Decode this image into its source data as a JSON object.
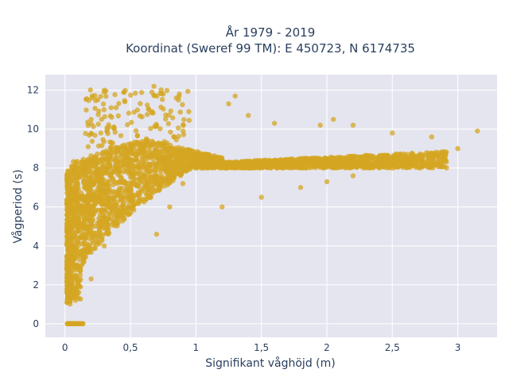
{
  "chart_data": {
    "type": "scatter",
    "title_line1": "År 1979 - 2019",
    "title_line2": "Koordinat (Sweref 99 TM): E 450723, N 6174735",
    "xlabel": "Signifikant våghöjd (m)",
    "ylabel": "Vågperiod (s)",
    "xlim": [
      -0.15,
      3.3
    ],
    "ylim": [
      -0.7,
      12.8
    ],
    "x_ticks": [
      0,
      0.5,
      1,
      1.5,
      2,
      2.5,
      3
    ],
    "x_tick_labels": [
      "0",
      "0,5",
      "1",
      "1,5",
      "2",
      "2,5",
      "3"
    ],
    "y_ticks": [
      0,
      2,
      4,
      6,
      8,
      10,
      12
    ],
    "y_tick_labels": [
      "0",
      "2",
      "4",
      "6",
      "8",
      "10",
      "12"
    ],
    "grid": true,
    "marker_color": "#D4A521",
    "plot_background": "#E5E5EF",
    "points_summary": {
      "core_band": "dense cloud from Hs≈0.02–2.9 m with Tp rising from ≈1–2 s at low Hs to ≈8–9 s at high Hs",
      "zero_period_points": "Tp = 0 for Hs ≈ 0.01–0.14 m",
      "upper_outliers": "sparse points up to Tp ≈ 12.2 s for Hs ≈ 0.2–0.85 m"
    },
    "sample_points": [
      [
        0.02,
        0
      ],
      [
        0.05,
        0
      ],
      [
        0.08,
        0
      ],
      [
        0.11,
        0
      ],
      [
        0.13,
        0
      ],
      [
        0.03,
        1.2
      ],
      [
        0.05,
        2.0
      ],
      [
        0.08,
        3.5
      ],
      [
        0.1,
        5.0
      ],
      [
        0.12,
        6.5
      ],
      [
        0.15,
        7.8
      ],
      [
        0.2,
        2.3
      ],
      [
        0.3,
        4.0
      ],
      [
        0.4,
        5.5
      ],
      [
        0.5,
        7.0
      ],
      [
        0.6,
        8.2
      ],
      [
        0.7,
        4.6
      ],
      [
        0.8,
        6.0
      ],
      [
        0.9,
        7.2
      ],
      [
        1.0,
        8.0
      ],
      [
        1.2,
        6.0
      ],
      [
        1.5,
        6.5
      ],
      [
        1.8,
        7.0
      ],
      [
        2.0,
        7.3
      ],
      [
        2.2,
        7.6
      ],
      [
        2.5,
        8.0
      ],
      [
        2.8,
        8.7
      ],
      [
        3.0,
        9.0
      ],
      [
        3.15,
        9.9
      ],
      [
        0.2,
        10.5
      ],
      [
        0.25,
        11.5
      ],
      [
        0.3,
        12.0
      ],
      [
        0.45,
        11.9
      ],
      [
        0.68,
        12.2
      ],
      [
        0.75,
        11.8
      ],
      [
        0.85,
        11.6
      ],
      [
        1.3,
        11.7
      ],
      [
        1.25,
        11.3
      ],
      [
        1.4,
        10.7
      ],
      [
        1.6,
        10.3
      ],
      [
        1.95,
        10.2
      ],
      [
        2.05,
        10.5
      ],
      [
        2.2,
        10.2
      ],
      [
        2.5,
        9.8
      ],
      [
        2.8,
        9.6
      ]
    ]
  }
}
